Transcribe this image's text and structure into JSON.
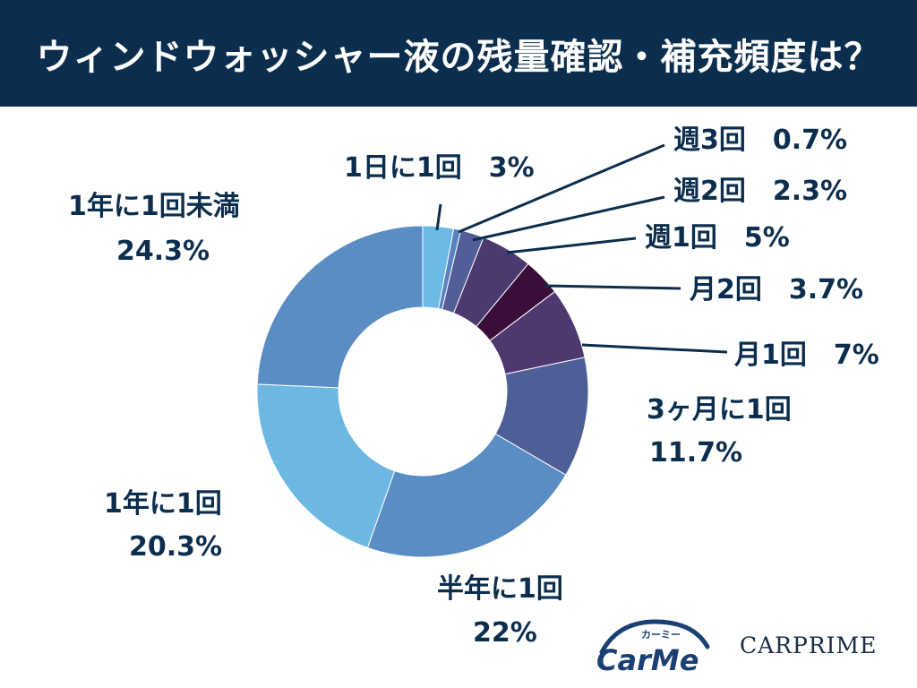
{
  "header": {
    "title": "ウィンドウォッシャー液の残量確認・補充頻度は？",
    "background": "#0c2e4e"
  },
  "chart_data": {
    "type": "pie",
    "donut": true,
    "title": "ウィンドウォッシャー液の残量確認・補充頻度は？",
    "unit": "%",
    "slices": [
      {
        "label": "1日に1回",
        "value": 3,
        "value_text": "3%",
        "color": "#6cb9e4"
      },
      {
        "label": "週3回",
        "value": 0.7,
        "value_text": "0.7%",
        "color": "#5a82bf"
      },
      {
        "label": "週2回",
        "value": 2.3,
        "value_text": "2.3%",
        "color": "#535e98"
      },
      {
        "label": "週1回",
        "value": 5,
        "value_text": "5%",
        "color": "#4b3a70"
      },
      {
        "label": "月2回",
        "value": 3.7,
        "value_text": "3.7%",
        "color": "#3b0e3a"
      },
      {
        "label": "月1回",
        "value": 7,
        "value_text": "7%",
        "color": "#4f3770"
      },
      {
        "label": "3ヶ月に1回",
        "value": 11.7,
        "value_text": "11.7%",
        "color": "#4e5e97"
      },
      {
        "label": "半年に1回",
        "value": 22,
        "value_text": "22%",
        "color": "#5b8dc5"
      },
      {
        "label": "1年に1回",
        "value": 20.3,
        "value_text": "20.3%",
        "color": "#6cb8e3"
      },
      {
        "label": "1年に1回未満",
        "value": 24.3,
        "value_text": "24.3%",
        "color": "#5b8dc5"
      }
    ]
  },
  "logos": {
    "carme_kana": "カーミー",
    "carme_text": "CarMe",
    "carprime_text": "CARPRIME"
  }
}
